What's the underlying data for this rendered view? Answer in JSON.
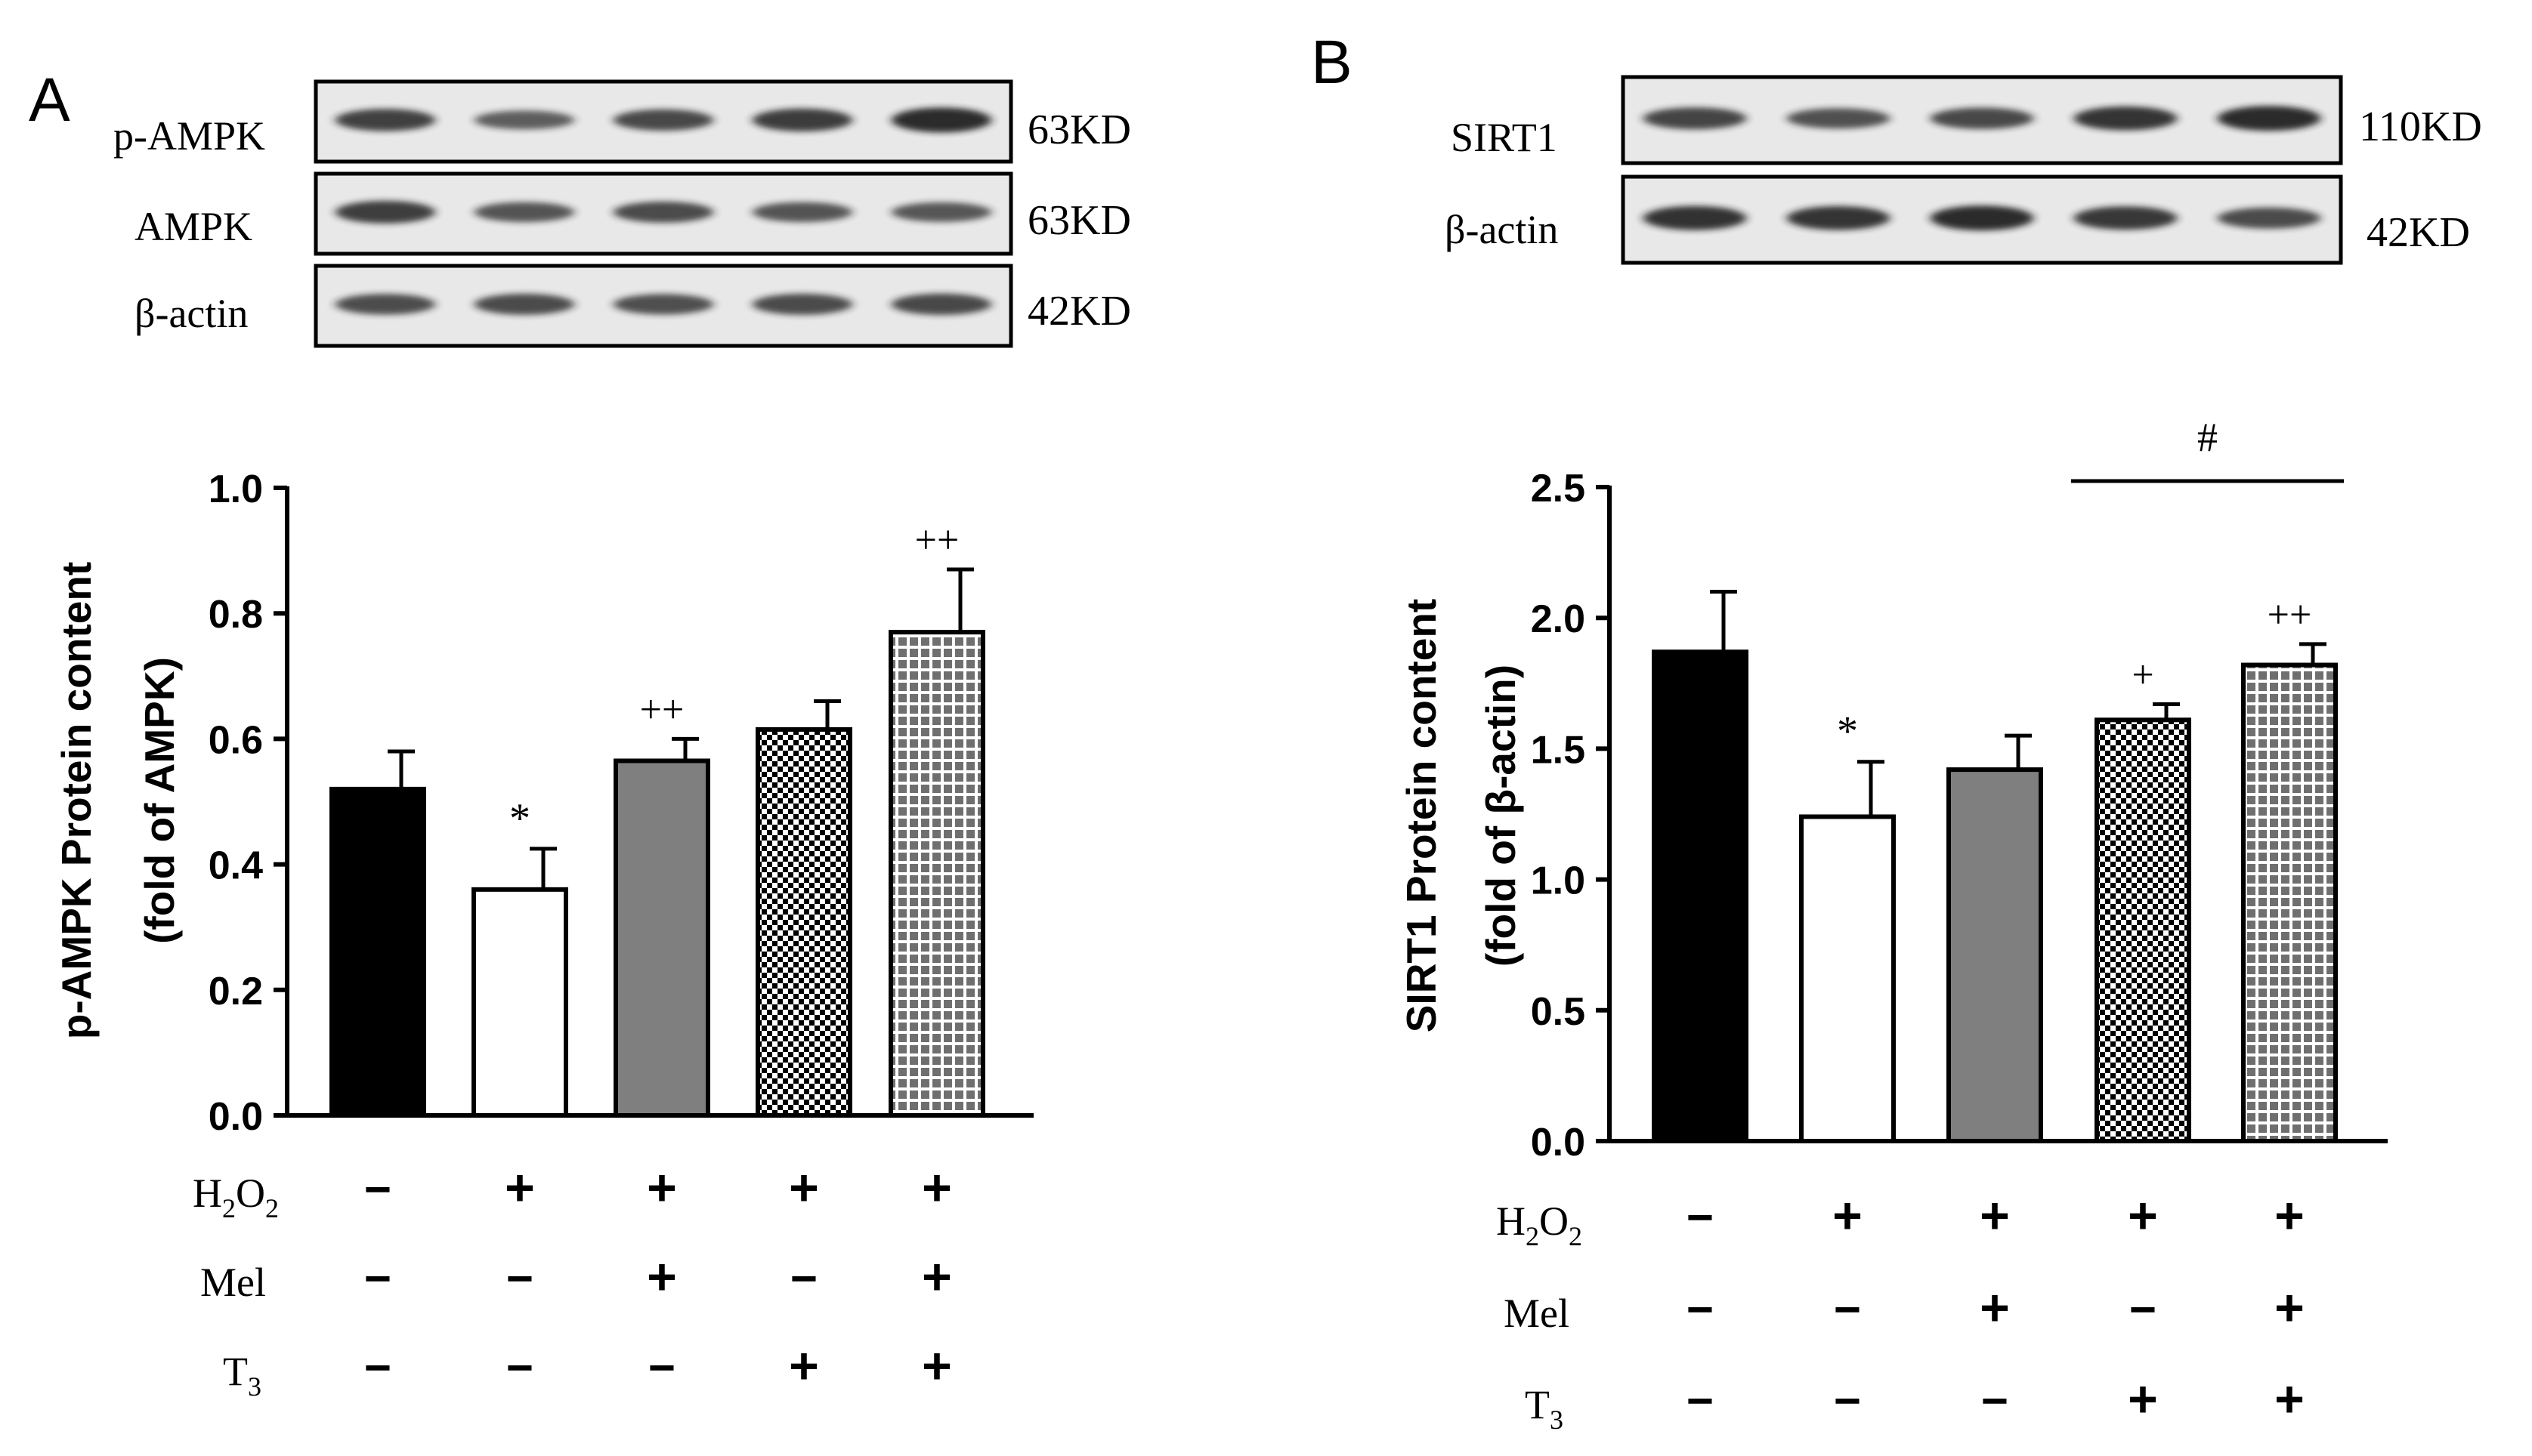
{
  "colors": {
    "ink": "#000000",
    "gray_bar": "#7f7f7f",
    "paper": "#ffffff",
    "blot_bg": "#e8e8e8",
    "blot_band": "#1e1e1e"
  },
  "panels": [
    {
      "letter": "A",
      "blot": {
        "rows": [
          {
            "label": "p-AMPK",
            "size": "63KD",
            "intensity": [
              0.78,
              0.55,
              0.72,
              0.82,
              0.95
            ]
          },
          {
            "label": "AMPK",
            "size": "63KD",
            "intensity": [
              0.8,
              0.62,
              0.7,
              0.62,
              0.6
            ]
          },
          {
            "label": "β-actin",
            "size": "42KD",
            "intensity": [
              0.68,
              0.7,
              0.66,
              0.7,
              0.72
            ]
          }
        ]
      },
      "treatments": [
        {
          "label": "H",
          "sub1": "2",
          "mid": "O",
          "sub2": "2",
          "signs": [
            "−",
            "+",
            "+",
            "+",
            "+"
          ]
        },
        {
          "label": "Mel",
          "signs": [
            "−",
            "−",
            "+",
            "−",
            "+"
          ]
        },
        {
          "label": "T",
          "sub1": "3",
          "signs": [
            "−",
            "−",
            "−",
            "+",
            "+"
          ]
        }
      ]
    },
    {
      "letter": "B",
      "blot": {
        "rows": [
          {
            "label": "SIRT1",
            "size": "110KD",
            "intensity": [
              0.75,
              0.65,
              0.72,
              0.88,
              0.95
            ]
          },
          {
            "label": "β-actin",
            "size": "42KD",
            "intensity": [
              0.9,
              0.88,
              0.95,
              0.85,
              0.7
            ]
          }
        ]
      },
      "treatments": [
        {
          "label": "H",
          "sub1": "2",
          "mid": "O",
          "sub2": "2",
          "signs": [
            "−",
            "+",
            "+",
            "+",
            "+"
          ]
        },
        {
          "label": "Mel",
          "signs": [
            "−",
            "−",
            "+",
            "−",
            "+"
          ]
        },
        {
          "label": "T",
          "sub1": "3",
          "signs": [
            "−",
            "−",
            "−",
            "+",
            "+"
          ]
        }
      ]
    }
  ],
  "chart_data": [
    {
      "type": "bar",
      "panel": "A",
      "ylabel_line1": "p-AMPK Protein content",
      "ylabel_line2": "(fold of AMPK)",
      "ylim": [
        0,
        1.0
      ],
      "yticks": [
        "0.0",
        "0.2",
        "0.4",
        "0.6",
        "0.8",
        "1.0"
      ],
      "values": [
        0.52,
        0.36,
        0.565,
        0.615,
        0.77
      ],
      "errors": [
        0.06,
        0.065,
        0.035,
        0.045,
        0.1
      ],
      "fills": [
        "black",
        "white",
        "gray",
        "checker",
        "grid"
      ],
      "annotations": [
        "",
        "*",
        "++",
        "",
        "++"
      ],
      "bracket": null
    },
    {
      "type": "bar",
      "panel": "B",
      "ylabel_line1": "SIRT1 Protein content",
      "ylabel_line2": "(fold of β-actin)",
      "ylim": [
        0,
        2.5
      ],
      "yticks": [
        "0.0",
        "0.5",
        "1.0",
        "1.5",
        "2.0",
        "2.5"
      ],
      "values": [
        1.87,
        1.24,
        1.42,
        1.61,
        1.82
      ],
      "errors": [
        0.23,
        0.21,
        0.13,
        0.06,
        0.08
      ],
      "fills": [
        "black",
        "white",
        "gray",
        "checker",
        "grid"
      ],
      "annotations": [
        "",
        "*",
        "",
        "+",
        "++"
      ],
      "bracket": {
        "label": "#",
        "from": 3,
        "to": 4
      }
    }
  ]
}
